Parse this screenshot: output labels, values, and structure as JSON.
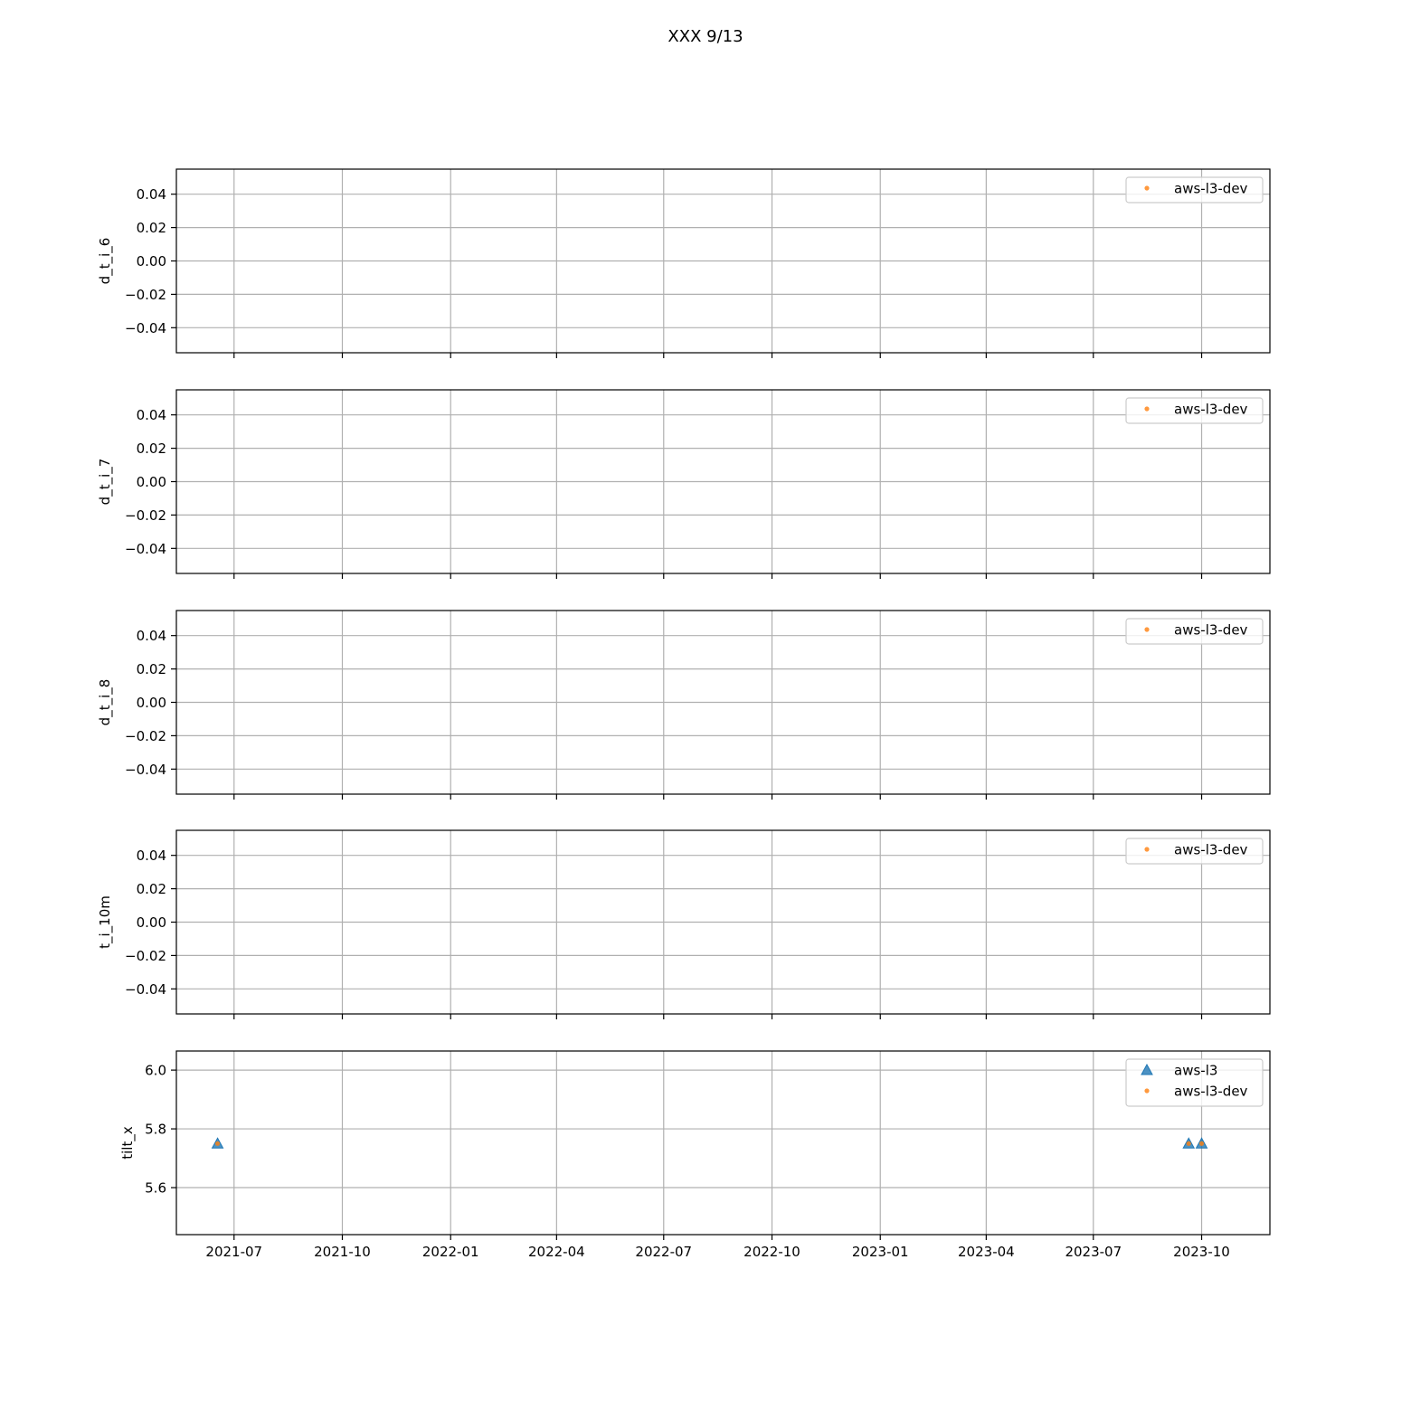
{
  "figure": {
    "title": "XXX 9/13",
    "shared_x_ticks": [
      "2021-07",
      "2021-10",
      "2022-01",
      "2022-04",
      "2022-07",
      "2022-10",
      "2023-01",
      "2023-04",
      "2023-07",
      "2023-10"
    ]
  },
  "chart_data": [
    {
      "type": "scatter",
      "ylabel": "d_t_i_6",
      "xlim": [
        "2021-05-13",
        "2023-11-28"
      ],
      "ylim": [
        -0.055,
        0.055
      ],
      "yticks": [
        0.04,
        0.02,
        0.0,
        -0.02,
        -0.04
      ],
      "ytick_labels": [
        "0.04",
        "0.02",
        "0.00",
        "−0.02",
        "−0.04"
      ],
      "grid": true,
      "legend_position": "upper right",
      "series": [
        {
          "name": "aws-l3-dev",
          "marker": "dot",
          "color": "#ff7f0e",
          "points": []
        }
      ]
    },
    {
      "type": "scatter",
      "ylabel": "d_t_i_7",
      "xlim": [
        "2021-05-13",
        "2023-11-28"
      ],
      "ylim": [
        -0.055,
        0.055
      ],
      "yticks": [
        0.04,
        0.02,
        0.0,
        -0.02,
        -0.04
      ],
      "ytick_labels": [
        "0.04",
        "0.02",
        "0.00",
        "−0.02",
        "−0.04"
      ],
      "grid": true,
      "legend_position": "upper right",
      "series": [
        {
          "name": "aws-l3-dev",
          "marker": "dot",
          "color": "#ff7f0e",
          "points": []
        }
      ]
    },
    {
      "type": "scatter",
      "ylabel": "d_t_i_8",
      "xlim": [
        "2021-05-13",
        "2023-11-28"
      ],
      "ylim": [
        -0.055,
        0.055
      ],
      "yticks": [
        0.04,
        0.02,
        0.0,
        -0.02,
        -0.04
      ],
      "ytick_labels": [
        "0.04",
        "0.02",
        "0.00",
        "−0.02",
        "−0.04"
      ],
      "grid": true,
      "legend_position": "upper right",
      "series": [
        {
          "name": "aws-l3-dev",
          "marker": "dot",
          "color": "#ff7f0e",
          "points": []
        }
      ]
    },
    {
      "type": "scatter",
      "ylabel": "t_i_10m",
      "xlim": [
        "2021-05-13",
        "2023-11-28"
      ],
      "ylim": [
        -0.055,
        0.055
      ],
      "yticks": [
        0.04,
        0.02,
        0.0,
        -0.02,
        -0.04
      ],
      "ytick_labels": [
        "0.04",
        "0.02",
        "0.00",
        "−0.02",
        "−0.04"
      ],
      "grid": true,
      "legend_position": "upper right",
      "series": [
        {
          "name": "aws-l3-dev",
          "marker": "dot",
          "color": "#ff7f0e",
          "points": []
        }
      ]
    },
    {
      "type": "scatter",
      "ylabel": "tilt_x",
      "xlim": [
        "2021-05-13",
        "2023-11-28"
      ],
      "ylim": [
        5.44,
        6.065
      ],
      "yticks": [
        6.0,
        5.8,
        5.6
      ],
      "ytick_labels": [
        "6.0",
        "5.8",
        "5.6"
      ],
      "grid": true,
      "legend_position": "upper right",
      "series": [
        {
          "name": "aws-l3",
          "marker": "triangle",
          "color": "#1f77b4",
          "points": [
            {
              "x": "2021-06-17",
              "y": 5.75
            },
            {
              "x": "2023-09-20",
              "y": 5.75
            },
            {
              "x": "2023-10-01",
              "y": 5.75
            }
          ]
        },
        {
          "name": "aws-l3-dev",
          "marker": "dot",
          "color": "#ff7f0e",
          "points": [
            {
              "x": "2021-06-17",
              "y": 5.75
            },
            {
              "x": "2023-09-20",
              "y": 5.75
            },
            {
              "x": "2023-10-01",
              "y": 5.75
            }
          ]
        }
      ]
    }
  ]
}
